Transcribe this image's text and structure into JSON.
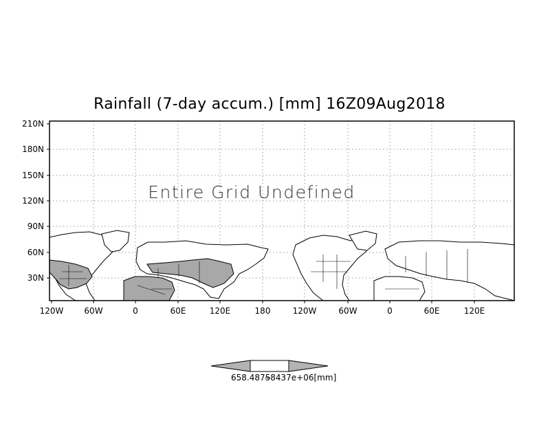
{
  "map": {
    "title": "Rainfall (7-day accum.) [mm] 16Z09Aug2018",
    "message": "Entire Grid Undefined",
    "lat_ticks": [
      "210N",
      "180N",
      "150N",
      "120N",
      "90N",
      "60N",
      "30N"
    ],
    "lon_ticks": [
      "120W",
      "60W",
      "0",
      "60E",
      "120E",
      "180",
      "120W",
      "60W",
      "0",
      "60E",
      "120E"
    ],
    "colorbar_label": "658.4875̶8437e+06[mm]",
    "colors": {
      "land_shaded": "#a8a8a8",
      "grid": "#9a9a9a",
      "frame": "#000000"
    }
  }
}
